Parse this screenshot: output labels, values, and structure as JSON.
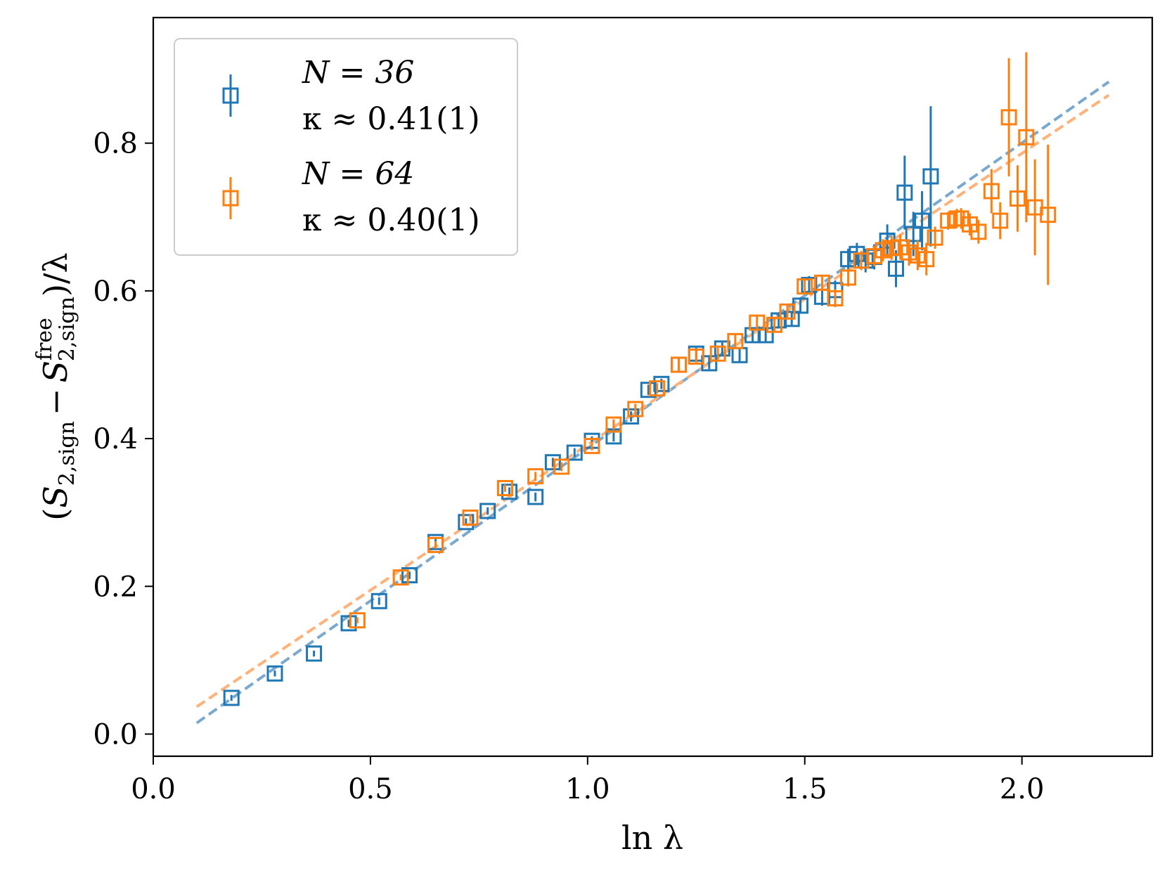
{
  "chart_data": {
    "type": "scatter",
    "title": "",
    "xlabel": "ln λ",
    "ylabel": "(S2,sign − S2,sign^free)/λ",
    "ylabel_parts": {
      "open": "(",
      "S": "S",
      "sub": "2,sign",
      "minus": "−",
      "sup": "free",
      "close": ")/λ"
    },
    "xlim": [
      0.0,
      2.3
    ],
    "ylim": [
      -0.03,
      0.97
    ],
    "xticks": [
      0.0,
      0.5,
      1.0,
      1.5,
      2.0
    ],
    "xtick_labels": [
      "0.0",
      "0.5",
      "1.0",
      "1.5",
      "2.0"
    ],
    "yticks": [
      0.0,
      0.2,
      0.4,
      0.6,
      0.8
    ],
    "ytick_labels": [
      "0.0",
      "0.2",
      "0.4",
      "0.6",
      "0.8"
    ],
    "grid": false,
    "legend_position": "top-left",
    "series": [
      {
        "name": "N = 36",
        "kappa_label": "κ ≈ 0.41(1)",
        "color": "#1f77b4",
        "fit_color": "#7aa9cf",
        "fit": {
          "x": [
            0.1,
            2.2
          ],
          "y": [
            0.015,
            0.883
          ]
        },
        "x": [
          0.18,
          0.28,
          0.37,
          0.45,
          0.52,
          0.59,
          0.65,
          0.72,
          0.77,
          0.82,
          0.88,
          0.92,
          0.97,
          1.01,
          1.06,
          1.1,
          1.14,
          1.17,
          1.21,
          1.25,
          1.28,
          1.31,
          1.35,
          1.38,
          1.41,
          1.44,
          1.47,
          1.49,
          1.51,
          1.54,
          1.57,
          1.6,
          1.62,
          1.64,
          1.66,
          1.69,
          1.71,
          1.73,
          1.75,
          1.77,
          1.79
        ],
        "y": [
          0.049,
          0.082,
          0.109,
          0.15,
          0.18,
          0.215,
          0.26,
          0.287,
          0.302,
          0.328,
          0.321,
          0.368,
          0.381,
          0.397,
          0.403,
          0.43,
          0.466,
          0.474,
          0.5,
          0.515,
          0.502,
          0.522,
          0.513,
          0.54,
          0.54,
          0.56,
          0.562,
          0.58,
          0.608,
          0.592,
          0.601,
          0.643,
          0.65,
          0.641,
          0.646,
          0.668,
          0.63,
          0.733,
          0.677,
          0.695,
          0.755
        ],
        "err": [
          0.004,
          0.004,
          0.004,
          0.005,
          0.005,
          0.005,
          0.005,
          0.005,
          0.005,
          0.006,
          0.006,
          0.006,
          0.006,
          0.006,
          0.007,
          0.007,
          0.007,
          0.007,
          0.008,
          0.008,
          0.008,
          0.008,
          0.009,
          0.009,
          0.009,
          0.01,
          0.01,
          0.011,
          0.012,
          0.012,
          0.013,
          0.014,
          0.015,
          0.016,
          0.017,
          0.022,
          0.025,
          0.05,
          0.03,
          0.04,
          0.095
        ]
      },
      {
        "name": "N = 64",
        "kappa_label": "κ ≈ 0.40(1)",
        "color": "#ff7f0e",
        "fit_color": "#ffb27a",
        "fit": {
          "x": [
            0.1,
            2.2
          ],
          "y": [
            0.037,
            0.865
          ]
        },
        "x": [
          0.47,
          0.57,
          0.65,
          0.73,
          0.81,
          0.88,
          0.94,
          1.01,
          1.06,
          1.11,
          1.16,
          1.21,
          1.25,
          1.3,
          1.34,
          1.39,
          1.43,
          1.46,
          1.5,
          1.54,
          1.57,
          1.6,
          1.63,
          1.66,
          1.68,
          1.7,
          1.72,
          1.74,
          1.76,
          1.78,
          1.8,
          1.83,
          1.85,
          1.86,
          1.88,
          1.9,
          1.93,
          1.95,
          1.97,
          1.99,
          2.01,
          2.03,
          2.06
        ],
        "y": [
          0.154,
          0.212,
          0.256,
          0.293,
          0.333,
          0.349,
          0.362,
          0.39,
          0.419,
          0.44,
          0.468,
          0.5,
          0.511,
          0.515,
          0.532,
          0.557,
          0.554,
          0.572,
          0.606,
          0.611,
          0.59,
          0.618,
          0.641,
          0.647,
          0.655,
          0.658,
          0.659,
          0.652,
          0.648,
          0.643,
          0.672,
          0.695,
          0.698,
          0.698,
          0.69,
          0.68,
          0.735,
          0.695,
          0.835,
          0.725,
          0.808,
          0.713,
          0.703
        ],
        "err": [
          0.004,
          0.004,
          0.005,
          0.005,
          0.005,
          0.006,
          0.006,
          0.006,
          0.007,
          0.007,
          0.007,
          0.008,
          0.008,
          0.008,
          0.009,
          0.009,
          0.01,
          0.01,
          0.011,
          0.011,
          0.012,
          0.012,
          0.013,
          0.014,
          0.015,
          0.016,
          0.017,
          0.018,
          0.02,
          0.022,
          0.015,
          0.012,
          0.013,
          0.014,
          0.015,
          0.016,
          0.03,
          0.025,
          0.08,
          0.045,
          0.115,
          0.065,
          0.095
        ]
      }
    ]
  }
}
